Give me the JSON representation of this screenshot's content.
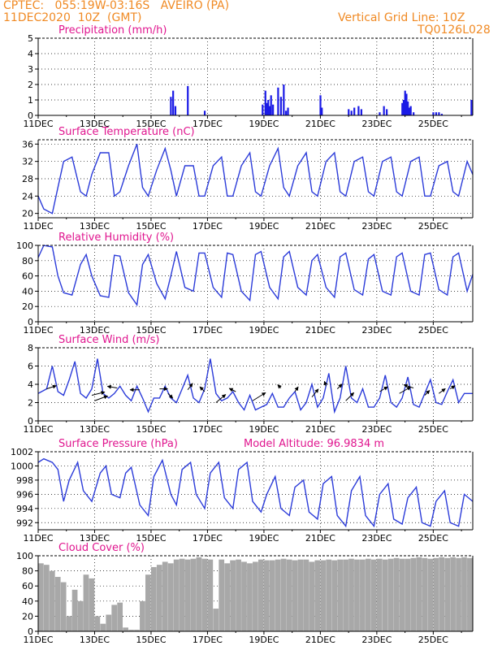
{
  "header": {
    "line1": "CPTEC:   055:19W-03:16S   AVEIRO (PA)",
    "line2": "11DEC2020  10Z  (GMT)",
    "right1": "Vertical Grid Line: 10Z",
    "right2": "TQ0126L028"
  },
  "colors": {
    "header": "#f08a24",
    "title": "#e0168f",
    "line": "#2b3bd9",
    "bar": "#1a1ae6",
    "cloud": "#a8a8a8",
    "arrow": "#000000"
  },
  "x_ticks": [
    "11DEC",
    "13DEC",
    "15DEC",
    "17DEC",
    "19DEC",
    "21DEC",
    "23DEC",
    "25DEC"
  ],
  "x_tick_days": [
    0,
    2,
    4,
    6,
    8,
    10,
    12,
    14
  ],
  "x_range": [
    0,
    15.4
  ],
  "chart_data": [
    {
      "type": "bar",
      "title": "Precipitation (mm/h)",
      "ylim": [
        0,
        5
      ],
      "yticks": [
        "0",
        "1",
        "2",
        "3",
        "4",
        "5"
      ],
      "x": [
        4.7,
        4.78,
        4.86,
        5.3,
        5.9,
        7.95,
        8.05,
        8.1,
        8.15,
        8.2,
        8.25,
        8.32,
        8.5,
        8.6,
        8.7,
        8.78,
        8.85,
        10.0,
        10.05,
        11.0,
        11.1,
        11.2,
        11.35,
        11.45,
        12.1,
        12.25,
        12.35,
        12.9,
        12.95,
        13.0,
        13.05,
        13.1,
        13.15,
        13.2,
        13.3,
        14.0,
        14.1,
        14.2,
        14.3,
        15.35
      ],
      "values": [
        1.2,
        1.6,
        0.6,
        1.9,
        0.3,
        0.7,
        1.6,
        0.8,
        1.0,
        0.6,
        1.3,
        0.7,
        1.8,
        1.2,
        2.0,
        0.3,
        0.5,
        1.3,
        0.5,
        0.4,
        0.3,
        0.5,
        0.6,
        0.4,
        0.2,
        0.6,
        0.4,
        0.8,
        1.0,
        1.6,
        1.4,
        0.9,
        0.5,
        0.6,
        0.2,
        0.2,
        0.2,
        0.2,
        0.1,
        1.0
      ]
    },
    {
      "type": "line",
      "title": "Surface Temperature (nC)",
      "ylim": [
        19,
        37
      ],
      "yticks": [
        "20",
        "24",
        "28",
        "32",
        "36"
      ],
      "x": [
        0,
        0.2,
        0.5,
        0.7,
        0.9,
        1.2,
        1.5,
        1.7,
        1.9,
        2.2,
        2.5,
        2.7,
        2.9,
        3.2,
        3.5,
        3.7,
        3.9,
        4.2,
        4.5,
        4.7,
        4.9,
        5.2,
        5.5,
        5.7,
        5.9,
        6.2,
        6.5,
        6.7,
        6.9,
        7.2,
        7.5,
        7.7,
        7.9,
        8.2,
        8.5,
        8.7,
        8.9,
        9.2,
        9.5,
        9.7,
        9.9,
        10.2,
        10.5,
        10.7,
        10.9,
        11.2,
        11.5,
        11.7,
        11.9,
        12.2,
        12.5,
        12.7,
        12.9,
        13.2,
        13.5,
        13.7,
        13.9,
        14.2,
        14.5,
        14.7,
        14.9,
        15.2,
        15.4
      ],
      "values": [
        24,
        21,
        20,
        26,
        32,
        33,
        25,
        24,
        29,
        34,
        34,
        24,
        25,
        31,
        36,
        26,
        24,
        30,
        35,
        30,
        24,
        31,
        31,
        24,
        24,
        31,
        33,
        24,
        24,
        31,
        34,
        25,
        24,
        31,
        35,
        26,
        24,
        31,
        34,
        25,
        24,
        32,
        34,
        25,
        24,
        32,
        33,
        25,
        24,
        32,
        33,
        25,
        24,
        32,
        33,
        24,
        24,
        31,
        32,
        25,
        24,
        32,
        29
      ]
    },
    {
      "type": "line",
      "title": "Relative Humidity (%)",
      "ylim": [
        0,
        100
      ],
      "yticks": [
        "0",
        "20",
        "40",
        "60",
        "80",
        "100"
      ],
      "x": [
        0,
        0.2,
        0.5,
        0.7,
        0.9,
        1.2,
        1.5,
        1.7,
        1.9,
        2.2,
        2.5,
        2.7,
        2.9,
        3.2,
        3.5,
        3.7,
        3.9,
        4.2,
        4.5,
        4.7,
        4.9,
        5.2,
        5.5,
        5.7,
        5.9,
        6.2,
        6.5,
        6.7,
        6.9,
        7.2,
        7.5,
        7.7,
        7.9,
        8.2,
        8.5,
        8.7,
        8.9,
        9.2,
        9.5,
        9.7,
        9.9,
        10.2,
        10.5,
        10.7,
        10.9,
        11.2,
        11.5,
        11.7,
        11.9,
        12.2,
        12.5,
        12.7,
        12.9,
        13.2,
        13.5,
        13.7,
        13.9,
        14.2,
        14.5,
        14.7,
        14.9,
        15.2,
        15.4
      ],
      "values": [
        84,
        100,
        98,
        60,
        38,
        35,
        75,
        88,
        60,
        34,
        32,
        87,
        86,
        38,
        22,
        75,
        88,
        50,
        30,
        60,
        92,
        45,
        40,
        90,
        90,
        45,
        32,
        90,
        88,
        40,
        28,
        88,
        92,
        45,
        30,
        85,
        92,
        45,
        35,
        80,
        88,
        45,
        32,
        85,
        90,
        42,
        35,
        82,
        88,
        40,
        35,
        85,
        90,
        40,
        35,
        88,
        90,
        42,
        35,
        85,
        90,
        40,
        62
      ]
    },
    {
      "type": "line",
      "title": "Surface Wind (m/s)",
      "ylim": [
        0,
        8
      ],
      "yticks": [
        "0",
        "2",
        "4",
        "6",
        "8"
      ],
      "x": [
        0,
        0.3,
        0.5,
        0.7,
        0.9,
        1.1,
        1.3,
        1.5,
        1.7,
        1.9,
        2.1,
        2.3,
        2.5,
        2.7,
        2.9,
        3.1,
        3.3,
        3.5,
        3.7,
        3.9,
        4.1,
        4.3,
        4.5,
        4.7,
        4.9,
        5.1,
        5.3,
        5.5,
        5.7,
        5.9,
        6.1,
        6.3,
        6.5,
        6.7,
        6.9,
        7.1,
        7.3,
        7.5,
        7.7,
        7.9,
        8.1,
        8.3,
        8.5,
        8.7,
        8.9,
        9.1,
        9.3,
        9.5,
        9.7,
        9.9,
        10.1,
        10.3,
        10.5,
        10.7,
        10.9,
        11.1,
        11.3,
        11.5,
        11.7,
        11.9,
        12.1,
        12.3,
        12.5,
        12.7,
        12.9,
        13.1,
        13.3,
        13.5,
        13.7,
        13.9,
        14.1,
        14.3,
        14.5,
        14.7,
        14.9,
        15.1,
        15.4
      ],
      "values": [
        3.0,
        3.5,
        6.0,
        3.2,
        2.8,
        4.5,
        6.5,
        3.0,
        2.5,
        3.5,
        6.8,
        3.0,
        2.5,
        3.0,
        3.8,
        2.8,
        2.2,
        3.8,
        2.5,
        1.0,
        2.5,
        2.5,
        3.8,
        2.5,
        2.0,
        3.5,
        5.0,
        2.5,
        2.0,
        3.5,
        6.8,
        3.0,
        2.2,
        2.5,
        3.2,
        2.0,
        1.2,
        2.8,
        1.2,
        1.5,
        1.8,
        3.0,
        1.5,
        1.5,
        2.5,
        3.2,
        1.2,
        2.0,
        4.0,
        1.5,
        2.5,
        5.2,
        1.0,
        2.5,
        6.0,
        2.5,
        2.0,
        3.5,
        1.5,
        1.5,
        2.5,
        5.0,
        2.0,
        1.5,
        2.5,
        4.8,
        1.8,
        1.5,
        3.0,
        4.5,
        2.0,
        1.8,
        3.2,
        4.5,
        2.0,
        3.0,
        3.0
      ],
      "wind_arrows": [
        {
          "x": 0.3,
          "y": 3.5,
          "dx": 12,
          "dy": -4
        },
        {
          "x": 1.9,
          "y": 2.8,
          "dx": 16,
          "dy": -4
        },
        {
          "x": 2.0,
          "y": 2.2,
          "dx": 16,
          "dy": -6
        },
        {
          "x": 2.8,
          "y": 3.6,
          "dx": -12,
          "dy": -2
        },
        {
          "x": 3.6,
          "y": 3.4,
          "dx": -12,
          "dy": 0
        },
        {
          "x": 4.3,
          "y": 3.5,
          "dx": 10,
          "dy": 0
        },
        {
          "x": 4.6,
          "y": 3.0,
          "dx": 6,
          "dy": 6
        },
        {
          "x": 5.3,
          "y": 3.4,
          "dx": 6,
          "dy": -8
        },
        {
          "x": 5.9,
          "y": 3.2,
          "dx": -6,
          "dy": -6
        },
        {
          "x": 6.3,
          "y": 2.0,
          "dx": 12,
          "dy": -10
        },
        {
          "x": 7.0,
          "y": 3.2,
          "dx": -8,
          "dy": -4
        },
        {
          "x": 7.6,
          "y": 2.2,
          "dx": 16,
          "dy": -10
        },
        {
          "x": 8.6,
          "y": 3.6,
          "dx": -4,
          "dy": -4
        },
        {
          "x": 9.1,
          "y": 3.2,
          "dx": 4,
          "dy": -6
        },
        {
          "x": 9.7,
          "y": 2.6,
          "dx": 8,
          "dy": -10
        },
        {
          "x": 10.2,
          "y": 3.8,
          "dx": -2,
          "dy": -6
        },
        {
          "x": 10.6,
          "y": 3.5,
          "dx": 6,
          "dy": -6
        },
        {
          "x": 10.9,
          "y": 2.2,
          "dx": 10,
          "dy": -10
        },
        {
          "x": 12.1,
          "y": 3.2,
          "dx": 10,
          "dy": -6
        },
        {
          "x": 12.8,
          "y": 3.0,
          "dx": 14,
          "dy": -8
        },
        {
          "x": 13.3,
          "y": 3.6,
          "dx": -12,
          "dy": -4
        },
        {
          "x": 13.7,
          "y": 2.8,
          "dx": 6,
          "dy": -6
        },
        {
          "x": 14.2,
          "y": 3.0,
          "dx": 8,
          "dy": -6
        },
        {
          "x": 14.6,
          "y": 3.5,
          "dx": 6,
          "dy": -4
        }
      ]
    },
    {
      "type": "line",
      "title": "Surface Pressure (hPa)",
      "annotation": "Model Altitude: 96.9834  m",
      "ylim": [
        991,
        1002
      ],
      "yticks": [
        "992",
        "994",
        "996",
        "998",
        "1000",
        "1002"
      ],
      "x": [
        0,
        0.2,
        0.5,
        0.7,
        0.9,
        1.1,
        1.4,
        1.6,
        1.9,
        2.2,
        2.4,
        2.6,
        2.9,
        3.1,
        3.3,
        3.6,
        3.9,
        4.1,
        4.4,
        4.7,
        4.9,
        5.1,
        5.4,
        5.6,
        5.9,
        6.1,
        6.4,
        6.6,
        6.9,
        7.1,
        7.4,
        7.6,
        7.9,
        8.1,
        8.4,
        8.6,
        8.9,
        9.1,
        9.4,
        9.6,
        9.9,
        10.1,
        10.4,
        10.6,
        10.9,
        11.1,
        11.4,
        11.6,
        11.9,
        12.1,
        12.4,
        12.6,
        12.9,
        13.1,
        13.4,
        13.6,
        13.9,
        14.1,
        14.4,
        14.6,
        14.9,
        15.1,
        15.4
      ],
      "values": [
        1000.5,
        1001.0,
        1000.5,
        999.5,
        995.0,
        998.0,
        1000.5,
        996.5,
        995.0,
        999.0,
        1000.0,
        996.0,
        995.5,
        999.0,
        999.8,
        994.5,
        993.0,
        998.5,
        1000.8,
        996.0,
        994.5,
        999.5,
        1000.5,
        996.0,
        994.0,
        999.0,
        1000.5,
        995.5,
        994.0,
        999.5,
        1000.5,
        995.0,
        993.5,
        996.0,
        998.5,
        994.0,
        993.0,
        997.0,
        998.0,
        993.5,
        992.5,
        997.5,
        998.5,
        993.0,
        991.5,
        996.5,
        998.5,
        993.0,
        991.5,
        996.0,
        997.5,
        992.5,
        991.8,
        995.5,
        997.0,
        992.0,
        991.5,
        995.0,
        996.5,
        992.0,
        991.5,
        996.0,
        995.0
      ]
    },
    {
      "type": "bar",
      "title": "Cloud Cover (%)",
      "ylim": [
        0,
        100
      ],
      "yticks": [
        "0",
        "20",
        "40",
        "60",
        "80",
        "100"
      ],
      "x": [
        0,
        0.2,
        0.4,
        0.6,
        0.8,
        1.0,
        1.2,
        1.4,
        1.6,
        1.8,
        2.0,
        2.2,
        2.4,
        2.6,
        2.8,
        3.0,
        3.2,
        3.4,
        3.6,
        3.8,
        4.0,
        4.2,
        4.4,
        4.6,
        4.8,
        5.0,
        5.2,
        5.4,
        5.6,
        5.8,
        6.0,
        6.2,
        6.4,
        6.6,
        6.8,
        7.0,
        7.2,
        7.4,
        7.6,
        7.8,
        8.0,
        8.2,
        8.4,
        8.6,
        8.8,
        9.0,
        9.2,
        9.4,
        9.6,
        9.8,
        10.0,
        10.2,
        10.4,
        10.6,
        10.8,
        11.0,
        11.2,
        11.4,
        11.6,
        11.8,
        12.0,
        12.2,
        12.4,
        12.6,
        12.8,
        13.0,
        13.2,
        13.4,
        13.6,
        13.8,
        14.0,
        14.2,
        14.4,
        14.6,
        14.8,
        15.0,
        15.2
      ],
      "values": [
        90,
        88,
        80,
        72,
        65,
        20,
        55,
        40,
        75,
        70,
        20,
        10,
        22,
        35,
        38,
        5,
        2,
        2,
        40,
        75,
        85,
        88,
        92,
        90,
        95,
        96,
        95,
        96,
        98,
        96,
        95,
        30,
        95,
        90,
        94,
        95,
        92,
        90,
        92,
        95,
        94,
        94,
        95,
        96,
        95,
        94,
        95,
        95,
        92,
        94,
        94,
        95,
        94,
        95,
        95,
        96,
        95,
        95,
        96,
        95,
        96,
        95,
        96,
        97,
        96,
        96,
        97,
        98,
        97,
        96,
        97,
        98,
        97,
        98,
        97,
        98,
        97
      ]
    }
  ]
}
